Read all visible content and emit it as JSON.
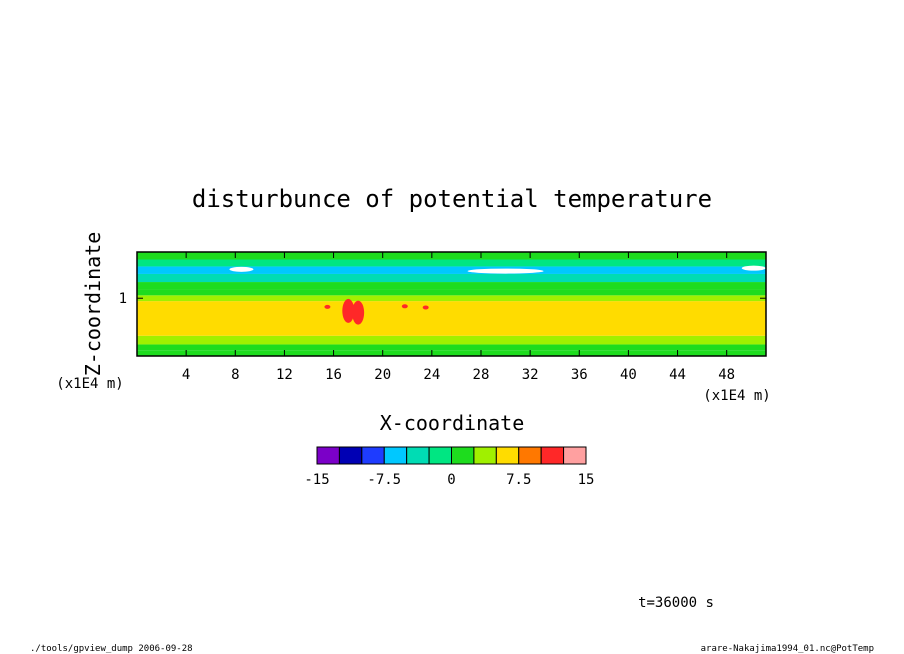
{
  "chart_data": {
    "type": "heatmap",
    "title": "disturbunce of potential temperature",
    "xlabel": "X-coordinate",
    "ylabel": "Z-coordinate",
    "x_unit": "(x1E4 m)",
    "y_unit": "(x1E4 m)",
    "xlim": [
      0,
      51.2
    ],
    "ylim": [
      0,
      1.8
    ],
    "x_ticks": [
      4,
      8,
      12,
      16,
      20,
      24,
      28,
      32,
      36,
      40,
      44,
      48
    ],
    "y_ticks": [
      1
    ],
    "colorbar": {
      "levels": [
        -15,
        -12.5,
        -10,
        -7.5,
        -5,
        -2.5,
        0,
        2.5,
        5,
        7.5,
        10,
        12.5,
        15
      ],
      "tick_labels": [
        "-15",
        "-7.5",
        "0",
        "7.5",
        "15"
      ],
      "tick_values": [
        -15,
        -7.5,
        0,
        7.5,
        15
      ],
      "colors": [
        "#7b00c8",
        "#0000b4",
        "#1e3cff",
        "#00c8ff",
        "#00dcb4",
        "#00e682",
        "#1edc1e",
        "#a0f000",
        "#ffdc00",
        "#ff7800",
        "#ff2828",
        "#ffa0a0"
      ]
    },
    "bands": [
      {
        "z": [
          0.0,
          0.1
        ],
        "value": 1.2
      },
      {
        "z": [
          0.1,
          0.2
        ],
        "value": 2.0
      },
      {
        "z": [
          0.2,
          0.35
        ],
        "value": 4.0
      },
      {
        "z": [
          0.35,
          0.95
        ],
        "value": 6.0
      },
      {
        "z": [
          0.95,
          1.05
        ],
        "value": 3.5
      },
      {
        "z": [
          1.05,
          1.15
        ],
        "value": 1.0
      },
      {
        "z": [
          1.15,
          1.28
        ],
        "value": 0.5
      },
      {
        "z": [
          1.28,
          1.42
        ],
        "value": -3.0
      },
      {
        "z": [
          1.42,
          1.55
        ],
        "value": -6.5
      },
      {
        "z": [
          1.55,
          1.67
        ],
        "value": -2.0
      },
      {
        "z": [
          1.67,
          1.8
        ],
        "value": 1.5
      }
    ],
    "anomalies": [
      {
        "x": 17.2,
        "z": 0.78,
        "value": 11.0
      },
      {
        "x": 18.0,
        "z": 0.75,
        "value": 11.0
      },
      {
        "x": 15.5,
        "z": 0.85,
        "value": 10.0
      },
      {
        "x": 21.8,
        "z": 0.86,
        "value": 10.0
      },
      {
        "x": 23.5,
        "z": 0.84,
        "value": 10.0
      },
      {
        "x": 30.0,
        "z": 1.47,
        "value": -16.0
      },
      {
        "x": 8.5,
        "z": 1.5,
        "value": -16.0
      },
      {
        "x": 50.2,
        "z": 1.52,
        "value": -16.0
      }
    ]
  },
  "time_label": "t=36000 s",
  "footer_left": "./tools/gpview_dump  2006-09-28",
  "footer_right": "arare-Nakajima1994_01.nc@PotTemp"
}
